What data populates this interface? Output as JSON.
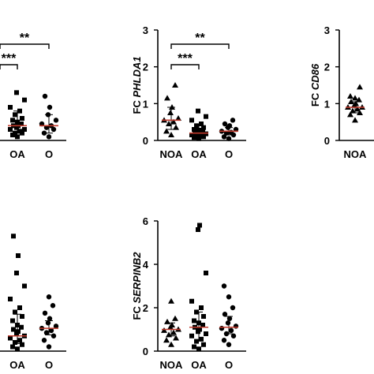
{
  "chart_data": [
    {
      "type": "scatter",
      "panel": "top-left",
      "ylabel": "",
      "categories": [
        "",
        "OA",
        "O"
      ],
      "visible_tick_labels": [],
      "ylim": [
        0,
        3
      ],
      "series": [
        {
          "name": "",
          "marker": "triangle",
          "category": "",
          "values": []
        },
        {
          "name": "",
          "marker": "square",
          "category": "OA",
          "values": [
            0.1,
            0.15,
            0.2,
            0.2,
            0.25,
            0.3,
            0.3,
            0.35,
            0.4,
            0.4,
            0.45,
            0.5,
            0.55,
            0.6,
            0.7,
            0.8,
            0.9,
            1.1,
            1.3
          ]
        },
        {
          "name": "",
          "marker": "circle",
          "category": "O",
          "values": [
            0.1,
            0.2,
            0.3,
            0.35,
            0.4,
            0.45,
            0.55,
            0.7,
            0.9,
            1.2
          ]
        }
      ],
      "medians": {
        "OA": 0.4,
        "O": 0.4
      },
      "error_bars": {
        "OA": [
          0.2,
          0.8
        ],
        "O": [
          0.2,
          0.7
        ]
      },
      "significance": [
        {
          "label": "**",
          "from": "",
          "to": "O"
        },
        {
          "label": "***",
          "from": "",
          "to": "OA"
        }
      ]
    },
    {
      "type": "scatter",
      "panel": "top-middle",
      "ylabel_prefix": "FC",
      "ylabel_gene": "PHLDA1",
      "categories": [
        "NOA",
        "OA",
        "O"
      ],
      "yticks": [
        "0",
        "1",
        "2",
        "3"
      ],
      "ylim": [
        0,
        3
      ],
      "series": [
        {
          "name": "",
          "marker": "triangle",
          "category": "NOA",
          "values": [
            0.15,
            0.25,
            0.35,
            0.45,
            0.5,
            0.55,
            0.6,
            0.75,
            0.9,
            1.15,
            1.5
          ]
        },
        {
          "name": "",
          "marker": "square",
          "category": "OA",
          "values": [
            0.05,
            0.08,
            0.1,
            0.12,
            0.15,
            0.15,
            0.18,
            0.2,
            0.2,
            0.22,
            0.25,
            0.28,
            0.3,
            0.35,
            0.4,
            0.45,
            0.55,
            0.65,
            0.8
          ]
        },
        {
          "name": "",
          "marker": "circle",
          "category": "O",
          "values": [
            0.05,
            0.1,
            0.15,
            0.2,
            0.22,
            0.25,
            0.3,
            0.35,
            0.4,
            0.45,
            0.55
          ]
        }
      ],
      "medians": {
        "NOA": 0.55,
        "OA": 0.2,
        "O": 0.25
      },
      "error_bars": {
        "NOA": [
          0.3,
          0.9
        ],
        "OA": [
          0.12,
          0.4
        ],
        "O": [
          0.15,
          0.35
        ]
      },
      "significance": [
        {
          "label": "**",
          "from": "NOA",
          "to": "O"
        },
        {
          "label": "***",
          "from": "NOA",
          "to": "OA"
        }
      ]
    },
    {
      "type": "scatter",
      "panel": "top-right",
      "ylabel_prefix": "FC",
      "ylabel_gene": "CD86",
      "categories": [
        "NOA"
      ],
      "yticks": [
        "0",
        "1",
        "2",
        "3"
      ],
      "ylim": [
        0,
        3
      ],
      "series": [
        {
          "name": "",
          "marker": "triangle",
          "category": "NOA",
          "values": [
            0.55,
            0.7,
            0.75,
            0.8,
            0.85,
            0.9,
            0.9,
            0.95,
            1.0,
            1.05,
            1.1,
            1.15,
            1.2,
            1.45
          ]
        }
      ],
      "medians": {
        "NOA": 0.9
      },
      "error_bars": {
        "NOA": [
          0.75,
          1.05
        ]
      }
    },
    {
      "type": "scatter",
      "panel": "bottom-left",
      "ylabel": "",
      "categories": [
        "",
        "OA",
        "O"
      ],
      "visible_tick_labels": [],
      "ylim": [
        0,
        6
      ],
      "series": [
        {
          "name": "",
          "marker": "triangle",
          "category": "",
          "values": []
        },
        {
          "name": "",
          "marker": "square",
          "category": "OA",
          "values": [
            0.1,
            0.2,
            0.3,
            0.4,
            0.5,
            0.6,
            0.7,
            0.8,
            0.9,
            1.0,
            1.1,
            1.2,
            1.4,
            1.6,
            1.8,
            2.0,
            2.4,
            3.0,
            3.6,
            4.4,
            5.3
          ]
        },
        {
          "name": "",
          "marker": "circle",
          "category": "O",
          "values": [
            0.2,
            0.5,
            0.7,
            0.85,
            0.95,
            1.05,
            1.15,
            1.3,
            1.5,
            1.75,
            2.1,
            2.5
          ]
        }
      ],
      "medians": {
        "OA": 0.7,
        "O": 1.05
      },
      "error_bars": {
        "OA": [
          0.35,
          1.7
        ],
        "O": [
          0.75,
          1.4
        ]
      }
    },
    {
      "type": "scatter",
      "panel": "bottom-middle",
      "ylabel_prefix": "FC",
      "ylabel_gene": "SERPINB2",
      "categories": [
        "NOA",
        "OA",
        "O"
      ],
      "yticks": [
        "0",
        "2",
        "4",
        "6"
      ],
      "ylim": [
        0,
        6
      ],
      "series": [
        {
          "name": "",
          "marker": "triangle",
          "category": "NOA",
          "values": [
            0.3,
            0.5,
            0.6,
            0.75,
            0.85,
            0.95,
            1.0,
            1.1,
            1.2,
            1.35,
            1.5,
            2.3
          ]
        },
        {
          "name": "",
          "marker": "square",
          "category": "OA",
          "values": [
            0.1,
            0.2,
            0.3,
            0.45,
            0.55,
            0.7,
            0.8,
            0.9,
            1.0,
            1.1,
            1.2,
            1.3,
            1.4,
            1.6,
            1.8,
            2.0,
            2.3,
            3.6,
            5.6,
            5.8
          ]
        },
        {
          "name": "",
          "marker": "circle",
          "category": "O",
          "values": [
            0.3,
            0.5,
            0.7,
            0.8,
            0.95,
            1.05,
            1.15,
            1.3,
            1.5,
            1.7,
            2.0,
            2.5,
            3.0
          ]
        }
      ],
      "medians": {
        "NOA": 1.0,
        "OA": 1.1,
        "O": 1.1
      },
      "error_bars": {
        "NOA": [
          0.7,
          1.3
        ],
        "OA": [
          0.5,
          1.8
        ],
        "O": [
          0.8,
          1.6
        ]
      }
    }
  ]
}
